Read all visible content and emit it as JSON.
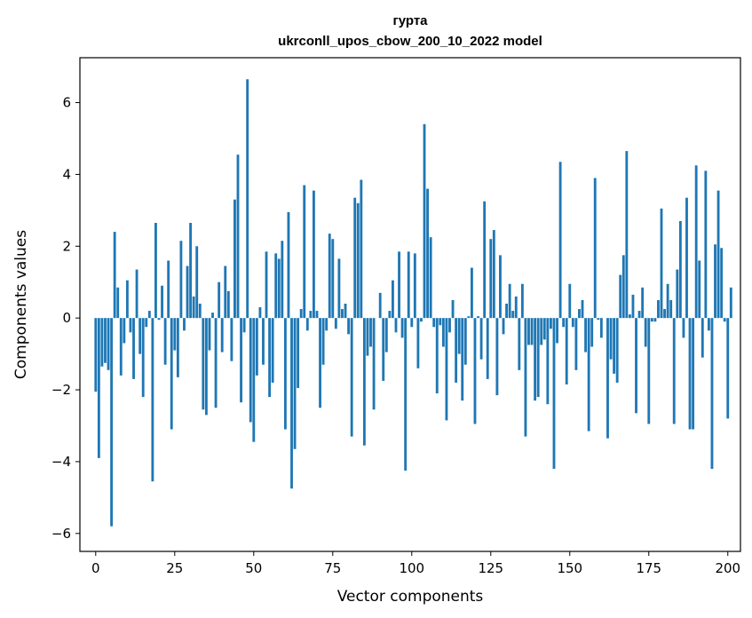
{
  "chart_data": {
    "type": "bar",
    "title_line1": "гурта",
    "title_line2": "ukrconll_upos_cbow_200_10_2022 model",
    "xlabel": "Vector components",
    "ylabel": "Components values",
    "xlim": [
      -5,
      204
    ],
    "ylim": [
      -6.5,
      7.25
    ],
    "xticks": [
      0,
      25,
      50,
      75,
      100,
      125,
      150,
      175,
      200
    ],
    "xtick_labels": [
      "0",
      "25",
      "50",
      "75",
      "100",
      "125",
      "150",
      "175",
      "200"
    ],
    "yticks": [
      -6,
      -4,
      -2,
      0,
      2,
      4,
      6
    ],
    "ytick_labels": [
      "−6",
      "−4",
      "−2",
      "0",
      "2",
      "4",
      "6"
    ],
    "bar_color": "#1f77b4",
    "values": [
      -2.05,
      -3.9,
      -1.35,
      -1.25,
      -1.45,
      -5.8,
      2.4,
      0.85,
      -1.6,
      -0.7,
      1.05,
      -0.4,
      -1.7,
      1.35,
      -1.0,
      -2.2,
      -0.25,
      0.2,
      -4.55,
      2.65,
      -0.05,
      0.9,
      -1.3,
      1.6,
      -3.1,
      -0.9,
      -1.65,
      2.15,
      -0.35,
      1.45,
      2.65,
      0.6,
      2.0,
      0.4,
      -2.55,
      -2.7,
      -0.9,
      0.15,
      -2.5,
      1.0,
      -0.95,
      1.45,
      0.75,
      -1.2,
      3.3,
      4.55,
      -2.35,
      -0.4,
      6.65,
      -2.9,
      -3.45,
      -1.6,
      0.3,
      -1.3,
      1.85,
      -2.2,
      -1.8,
      1.8,
      1.65,
      2.15,
      -3.1,
      2.95,
      -4.75,
      -3.65,
      -1.95,
      0.25,
      3.7,
      -0.35,
      0.2,
      3.55,
      0.2,
      -2.5,
      -1.3,
      -0.35,
      2.35,
      2.2,
      -0.3,
      1.65,
      0.25,
      0.4,
      -0.45,
      -3.3,
      3.35,
      3.2,
      3.85,
      -3.55,
      -1.05,
      -0.8,
      -2.55,
      0.0,
      0.7,
      -1.75,
      -0.95,
      0.2,
      1.05,
      -0.4,
      1.85,
      -0.55,
      -4.25,
      1.85,
      -0.25,
      1.8,
      -1.4,
      -0.1,
      5.4,
      3.6,
      2.25,
      -0.25,
      -2.1,
      -0.2,
      -0.8,
      -2.85,
      -0.4,
      0.5,
      -1.8,
      -1.0,
      -2.3,
      -1.3,
      0.05,
      1.4,
      -2.95,
      0.05,
      -1.15,
      3.25,
      -1.7,
      2.2,
      2.45,
      -2.15,
      1.75,
      -0.45,
      0.4,
      0.95,
      0.2,
      0.6,
      -1.45,
      0.95,
      -3.3,
      -0.75,
      -0.75,
      -2.3,
      -2.2,
      -0.75,
      -0.6,
      -2.4,
      -0.3,
      -4.2,
      -0.7,
      4.35,
      -0.25,
      -1.85,
      0.95,
      -0.25,
      -1.45,
      0.25,
      0.5,
      -0.95,
      -3.15,
      -0.8,
      3.9,
      -0.05,
      -0.55,
      0.0,
      -3.35,
      -1.15,
      -1.55,
      -1.8,
      1.2,
      1.75,
      4.65,
      0.1,
      0.65,
      -2.65,
      0.2,
      0.85,
      -0.8,
      -2.95,
      -0.1,
      -0.1,
      0.5,
      3.05,
      0.25,
      0.95,
      0.5,
      -2.95,
      1.35,
      2.7,
      -0.55,
      3.35,
      -3.1,
      -3.1,
      4.25,
      1.6,
      -1.1,
      4.1,
      -0.35,
      -4.2,
      2.05,
      3.55,
      1.95,
      -0.1,
      -2.8,
      0.85
    ]
  }
}
